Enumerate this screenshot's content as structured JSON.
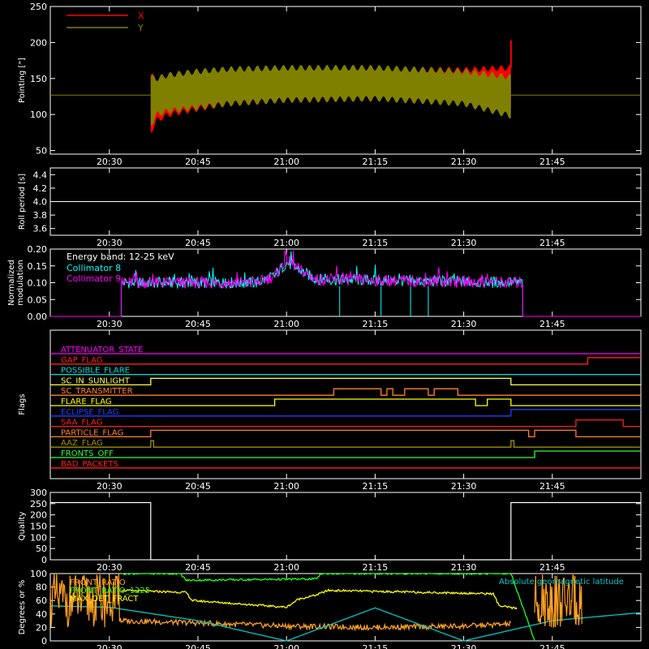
{
  "time_ticks": [
    "20:30",
    "20:45",
    "21:00",
    "21:15",
    "21:30",
    "21:45"
  ],
  "chart_data": [
    {
      "type": "line",
      "id": "pointing",
      "ylabel": "Pointing [\"]",
      "ylim": [
        45,
        250
      ],
      "yticks": [
        50,
        100,
        150,
        200,
        250
      ],
      "legend": "top-left",
      "series": [
        {
          "name": "X",
          "color": "#ff0000",
          "envelope": {
            "x": [
              "20:37",
              "20:38",
              "20:40",
              "20:45",
              "20:50",
              "21:00",
              "21:15",
              "21:30",
              "21:38"
            ],
            "upper": [
              155,
              148,
              152,
              158,
              160,
              162,
              163,
              162,
              165
            ],
            "lower": [
              75,
              92,
              100,
              108,
              115,
              120,
              122,
              120,
              112
            ]
          },
          "spike": {
            "x": "21:38",
            "value": 203
          }
        },
        {
          "name": "Y",
          "color": "#808000",
          "envelope": {
            "x": [
              "20:37",
              "20:38",
              "20:40",
              "20:45",
              "20:50",
              "21:00",
              "21:15",
              "21:30",
              "21:38"
            ],
            "upper": [
              152,
              150,
              155,
              160,
              163,
              165,
              165,
              160,
              152
            ],
            "lower": [
              85,
              100,
              105,
              110,
              115,
              120,
              122,
              115,
              98
            ]
          }
        },
        {
          "name": "",
          "color": "#808000",
          "level": 127
        }
      ]
    },
    {
      "type": "line",
      "id": "roll",
      "ylabel": "Roll period [s]",
      "ylim": [
        3.5,
        4.5
      ],
      "yticks": [
        "3.6",
        "3.8",
        "4.0",
        "4.2",
        "4.4"
      ],
      "series": [
        {
          "name": "",
          "color": "#ffffff",
          "level": 4.0
        }
      ]
    },
    {
      "type": "line",
      "id": "modulation",
      "ylabel": "Normalized modulation",
      "ylim": [
        0,
        0.2
      ],
      "yticks": [
        "0.00",
        "0.05",
        "0.10",
        "0.15",
        "0.20"
      ],
      "annotation": "Energy band: 12-25 keV",
      "legend": "top-left",
      "series": [
        {
          "name": "Collimator 8",
          "color": "#00ffff",
          "x": [
            "20:32",
            "20:55",
            "20:58",
            "21:00",
            "21:02",
            "21:05",
            "21:40"
          ],
          "y": [
            0.1,
            0.1,
            0.12,
            0.16,
            0.14,
            0.11,
            0.1
          ],
          "dropouts": [
            "21:09",
            "21:16",
            "21:21",
            "21:24"
          ]
        },
        {
          "name": "Collimator 9",
          "color": "#ff00ff",
          "x": [
            "20:32",
            "20:55",
            "20:58",
            "21:00",
            "21:02",
            "21:05",
            "21:40"
          ],
          "y": [
            0.1,
            0.1,
            0.12,
            0.17,
            0.14,
            0.11,
            0.1
          ]
        }
      ]
    },
    {
      "type": "line",
      "id": "flags",
      "ylabel": "Flags",
      "series": [
        {
          "name": "ATTENUATOR_STATE",
          "color": "#ff00ff",
          "steps": []
        },
        {
          "name": "GAP_FLAG",
          "color": "#ff2020",
          "steps": [
            [
              "21:51",
              1
            ]
          ]
        },
        {
          "name": "POSSIBLE_FLARE",
          "color": "#00e0e0",
          "steps": []
        },
        {
          "name": "SC_IN_SUNLIGHT",
          "color": "#ffff40",
          "steps": [
            [
              "20:37",
              1
            ],
            [
              "21:38",
              0
            ]
          ]
        },
        {
          "name": "SC_TRANSMITTER",
          "color": "#ff8030",
          "steps": [
            [
              "21:08",
              1
            ],
            [
              "21:16",
              0
            ],
            [
              "21:17",
              1
            ],
            [
              "21:18",
              0
            ],
            [
              "21:20",
              1
            ],
            [
              "21:24",
              0
            ],
            [
              "21:25",
              1
            ],
            [
              "21:29",
              0
            ]
          ]
        },
        {
          "name": "FLARE_FLAG",
          "color": "#ffff00",
          "steps": [
            [
              "20:58",
              1
            ],
            [
              "21:32",
              0
            ],
            [
              "21:34",
              1
            ],
            [
              "21:38",
              0
            ]
          ]
        },
        {
          "name": "ECLIPSE_FLAG",
          "color": "#2040ff",
          "steps": [
            [
              "20:37",
              0
            ],
            [
              "21:38",
              1
            ]
          ]
        },
        {
          "name": "SAA_FLAG",
          "color": "#ff2020",
          "steps": [
            [
              "21:49",
              1
            ],
            [
              "21:57",
              0
            ]
          ]
        },
        {
          "name": "PARTICLE_FLAG",
          "color": "#ff8030",
          "steps": [
            [
              "20:32",
              0
            ],
            [
              "20:37",
              1
            ],
            [
              "21:41",
              0
            ],
            [
              "21:42",
              1
            ],
            [
              "21:49",
              0
            ]
          ]
        },
        {
          "name": "AAZ_FLAG",
          "color": "#a09000",
          "steps": [
            [
              "20:37",
              1
            ],
            [
              "20:37.5",
              0
            ],
            [
              "21:38",
              1
            ],
            [
              "21:38.5",
              0
            ]
          ]
        },
        {
          "name": "FRONTS_OFF",
          "color": "#30ff30",
          "steps": [
            [
              "20:32",
              0
            ],
            [
              "21:42",
              1
            ]
          ]
        },
        {
          "name": "BAD_PACKETS",
          "color": "#ff2020",
          "steps": []
        }
      ]
    },
    {
      "type": "line",
      "id": "quality",
      "ylabel": "Quality",
      "ylim": [
        0,
        300
      ],
      "yticks": [
        0,
        50,
        100,
        150,
        200,
        250,
        300
      ],
      "series": [
        {
          "name": "",
          "color": "#ffffff",
          "x": [
            "20:20",
            "20:37",
            "20:37",
            "21:38",
            "21:38",
            "22:00"
          ],
          "y": [
            255,
            255,
            0,
            0,
            255,
            255
          ]
        }
      ]
    },
    {
      "type": "line",
      "id": "orbit",
      "ylabel": "Degrees or %",
      "ylim": [
        0,
        100
      ],
      "yticks": [
        0,
        20,
        40,
        60,
        80,
        100
      ],
      "legend": "top-left",
      "series": [
        {
          "name": "FRONT_RATIO",
          "color": "#ffa020",
          "x": [
            "20:32",
            "20:40",
            "20:50",
            "21:00",
            "21:15",
            "21:30",
            "21:38"
          ],
          "y": [
            30,
            28,
            25,
            22,
            20,
            22,
            25
          ]
        },
        {
          "name": "FRONT_RATIO_1225",
          "color": "#20ff20",
          "x": [
            "20:32",
            "20:42",
            "20:43",
            "21:05",
            "21:06",
            "21:38",
            "21:42"
          ],
          "y": [
            100,
            100,
            90,
            92,
            100,
            100,
            0
          ]
        },
        {
          "name": "MAX_DET_FRACT",
          "color": "#ffff00",
          "x": [
            "20:32",
            "20:43",
            "20:44",
            "21:00",
            "21:02",
            "21:05",
            "21:07",
            "21:35",
            "21:36",
            "21:39"
          ],
          "y": [
            75,
            72,
            60,
            50,
            62,
            68,
            75,
            70,
            52,
            48
          ]
        },
        {
          "name": "Absolute geomagnetic latitude",
          "color": "#00c8c8",
          "x": [
            "20:20",
            "20:30",
            "20:45",
            "21:00",
            "21:15",
            "21:30",
            "21:45",
            "22:00"
          ],
          "y": [
            52,
            50,
            30,
            0,
            49,
            0,
            30,
            42
          ]
        }
      ]
    }
  ]
}
